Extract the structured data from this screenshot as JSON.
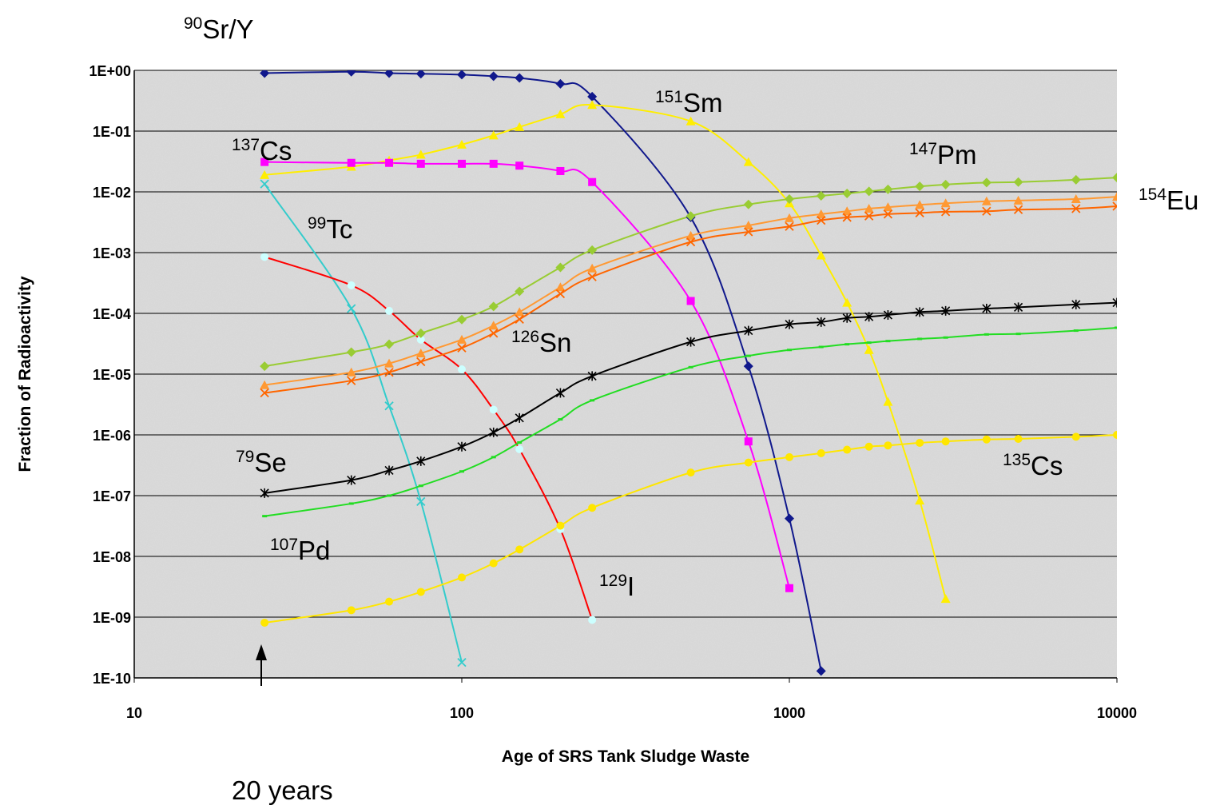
{
  "chart_data": {
    "type": "line",
    "xlabel": "Age of SRS Tank Sludge Waste",
    "ylabel": "Fraction of Radioactivity",
    "xscale": "log",
    "yscale": "log",
    "xlim": [
      10,
      10000
    ],
    "ylim": [
      1e-10,
      1
    ],
    "xticks": [
      10,
      100,
      1000,
      10000
    ],
    "yticks": [
      {
        "value": 1,
        "label": "1E+00"
      },
      {
        "value": 0.1,
        "label": "1E-01"
      },
      {
        "value": 0.01,
        "label": "1E-02"
      },
      {
        "value": 0.001,
        "label": "1E-03"
      },
      {
        "value": 0.0001,
        "label": "1E-04"
      },
      {
        "value": 1e-05,
        "label": "1E-05"
      },
      {
        "value": 1e-06,
        "label": "1E-06"
      },
      {
        "value": 1e-07,
        "label": "1E-07"
      },
      {
        "value": 1e-08,
        "label": "1E-08"
      },
      {
        "value": 1e-09,
        "label": "1E-09"
      },
      {
        "value": 1e-10,
        "label": "1E-10"
      }
    ],
    "grid": true,
    "x": [
      25,
      46,
      60,
      75,
      100,
      125,
      150,
      200,
      250,
      500,
      750,
      1000,
      1250,
      1500,
      1750,
      2000,
      2500,
      3000,
      4000,
      5000,
      7500,
      10000
    ],
    "series": [
      {
        "mass": "90",
        "name": "Sr/Y",
        "color": "#10188c",
        "marker": "diamond",
        "values": [
          0.9,
          0.95,
          0.9,
          0.88,
          0.85,
          0.8,
          0.75,
          0.6,
          0.37,
          0.0038,
          1.35e-05,
          4.2e-08,
          1.3e-10,
          null,
          null,
          null,
          null,
          null,
          null,
          null,
          null,
          null
        ]
      },
      {
        "mass": "151",
        "name": "Sm",
        "color": "#ffee00",
        "marker": "triangle",
        "values": [
          0.019,
          0.026,
          0.033,
          0.041,
          0.06,
          0.085,
          0.117,
          0.19,
          0.27,
          0.145,
          0.031,
          0.0065,
          0.0009,
          0.00015,
          2.5e-05,
          3.5e-06,
          8.3e-08,
          2e-09,
          null,
          null,
          null,
          null
        ]
      },
      {
        "mass": "137",
        "name": "Cs",
        "color": "#ff00ff",
        "marker": "square",
        "values": [
          0.031,
          0.03,
          0.03,
          0.029,
          0.029,
          0.029,
          0.027,
          0.022,
          0.0145,
          0.00016,
          7.8e-07,
          3e-09,
          null,
          null,
          null,
          null,
          null,
          null,
          null,
          null,
          null,
          null
        ]
      },
      {
        "mass": "147",
        "name": "Pm",
        "color": "#33cccc",
        "marker": "x",
        "values": [
          0.0135,
          0.00012,
          3e-06,
          8e-08,
          1.8e-10,
          null,
          null,
          null,
          null,
          null,
          null,
          null,
          null,
          null,
          null,
          null,
          null,
          null,
          null,
          null,
          null,
          null
        ]
      },
      {
        "mass": "154",
        "name": "Eu",
        "color": "#ff0000",
        "marker": "circle",
        "marker_color": "#ccffff",
        "values": [
          0.00085,
          0.00029,
          0.00011,
          3.7e-05,
          1.2e-05,
          2.6e-06,
          5.8e-07,
          2.8e-08,
          9e-10,
          null,
          null,
          null,
          null,
          null,
          null,
          null,
          null,
          null,
          null,
          null,
          null,
          null
        ]
      },
      {
        "mass": "99",
        "name": "Tc",
        "color": "#99cc33",
        "marker": "diamond",
        "values": [
          1.35e-05,
          2.3e-05,
          3.1e-05,
          4.7e-05,
          7.9e-05,
          0.00013,
          0.00023,
          0.00057,
          0.0011,
          0.004,
          0.0062,
          0.0076,
          0.0086,
          0.0094,
          0.0102,
          0.011,
          0.0123,
          0.0132,
          0.0142,
          0.0145,
          0.0158,
          0.0172
        ]
      },
      {
        "mass": "126",
        "name": "Sn",
        "color": "#ff9933",
        "marker": "triangle",
        "values": [
          6.6e-06,
          1.07e-05,
          1.5e-05,
          2.2e-05,
          3.7e-05,
          6.3e-05,
          0.000105,
          0.00027,
          0.00055,
          0.0019,
          0.0028,
          0.0037,
          0.0043,
          0.0048,
          0.0053,
          0.0056,
          0.0061,
          0.0065,
          0.007,
          0.0072,
          0.0076,
          0.0083
        ]
      },
      {
        "mass": "79",
        "name": "Se",
        "color": "#ff6600",
        "marker": "x",
        "values": [
          4.9e-06,
          7.8e-06,
          1.07e-05,
          1.6e-05,
          2.7e-05,
          4.7e-05,
          8e-05,
          0.00021,
          0.0004,
          0.0015,
          0.0022,
          0.0027,
          0.0034,
          0.0038,
          0.004,
          0.0043,
          0.0045,
          0.0047,
          0.0048,
          0.0051,
          0.0053,
          0.0058
        ]
      },
      {
        "mass": "135",
        "name": "Cs",
        "color": "#000000",
        "marker": "star",
        "values": [
          1.1e-07,
          1.8e-07,
          2.6e-07,
          3.7e-07,
          6.4e-07,
          1.1e-06,
          1.9e-06,
          4.9e-06,
          9.3e-06,
          3.4e-05,
          5.2e-05,
          6.6e-05,
          7.2e-05,
          8.4e-05,
          8.8e-05,
          9.4e-05,
          0.000105,
          0.00011,
          0.00012,
          0.000126,
          0.00014,
          0.00015
        ]
      },
      {
        "mass": "107",
        "name": "Pd",
        "color": "#22dd22",
        "marker": "dash",
        "values": [
          4.6e-08,
          7.4e-08,
          1e-07,
          1.45e-07,
          2.5e-07,
          4.3e-07,
          7.5e-07,
          1.8e-06,
          3.7e-06,
          1.3e-05,
          2e-05,
          2.5e-05,
          2.8e-05,
          3.1e-05,
          3.3e-05,
          3.5e-05,
          3.8e-05,
          4e-05,
          4.5e-05,
          4.6e-05,
          5.2e-05,
          5.8e-05
        ]
      },
      {
        "mass": "129",
        "name": "I",
        "color": "#ffe600",
        "marker": "circle",
        "values": [
          8.1e-10,
          1.3e-09,
          1.8e-09,
          2.6e-09,
          4.5e-09,
          7.7e-09,
          1.3e-08,
          3.2e-08,
          6.3e-08,
          2.4e-07,
          3.5e-07,
          4.3e-07,
          5e-07,
          5.7e-07,
          6.4e-07,
          6.7e-07,
          7.4e-07,
          7.8e-07,
          8.4e-07,
          8.6e-07,
          9.3e-07,
          1e-06
        ]
      }
    ],
    "annotations": [
      {
        "text": "20 years"
      }
    ]
  }
}
